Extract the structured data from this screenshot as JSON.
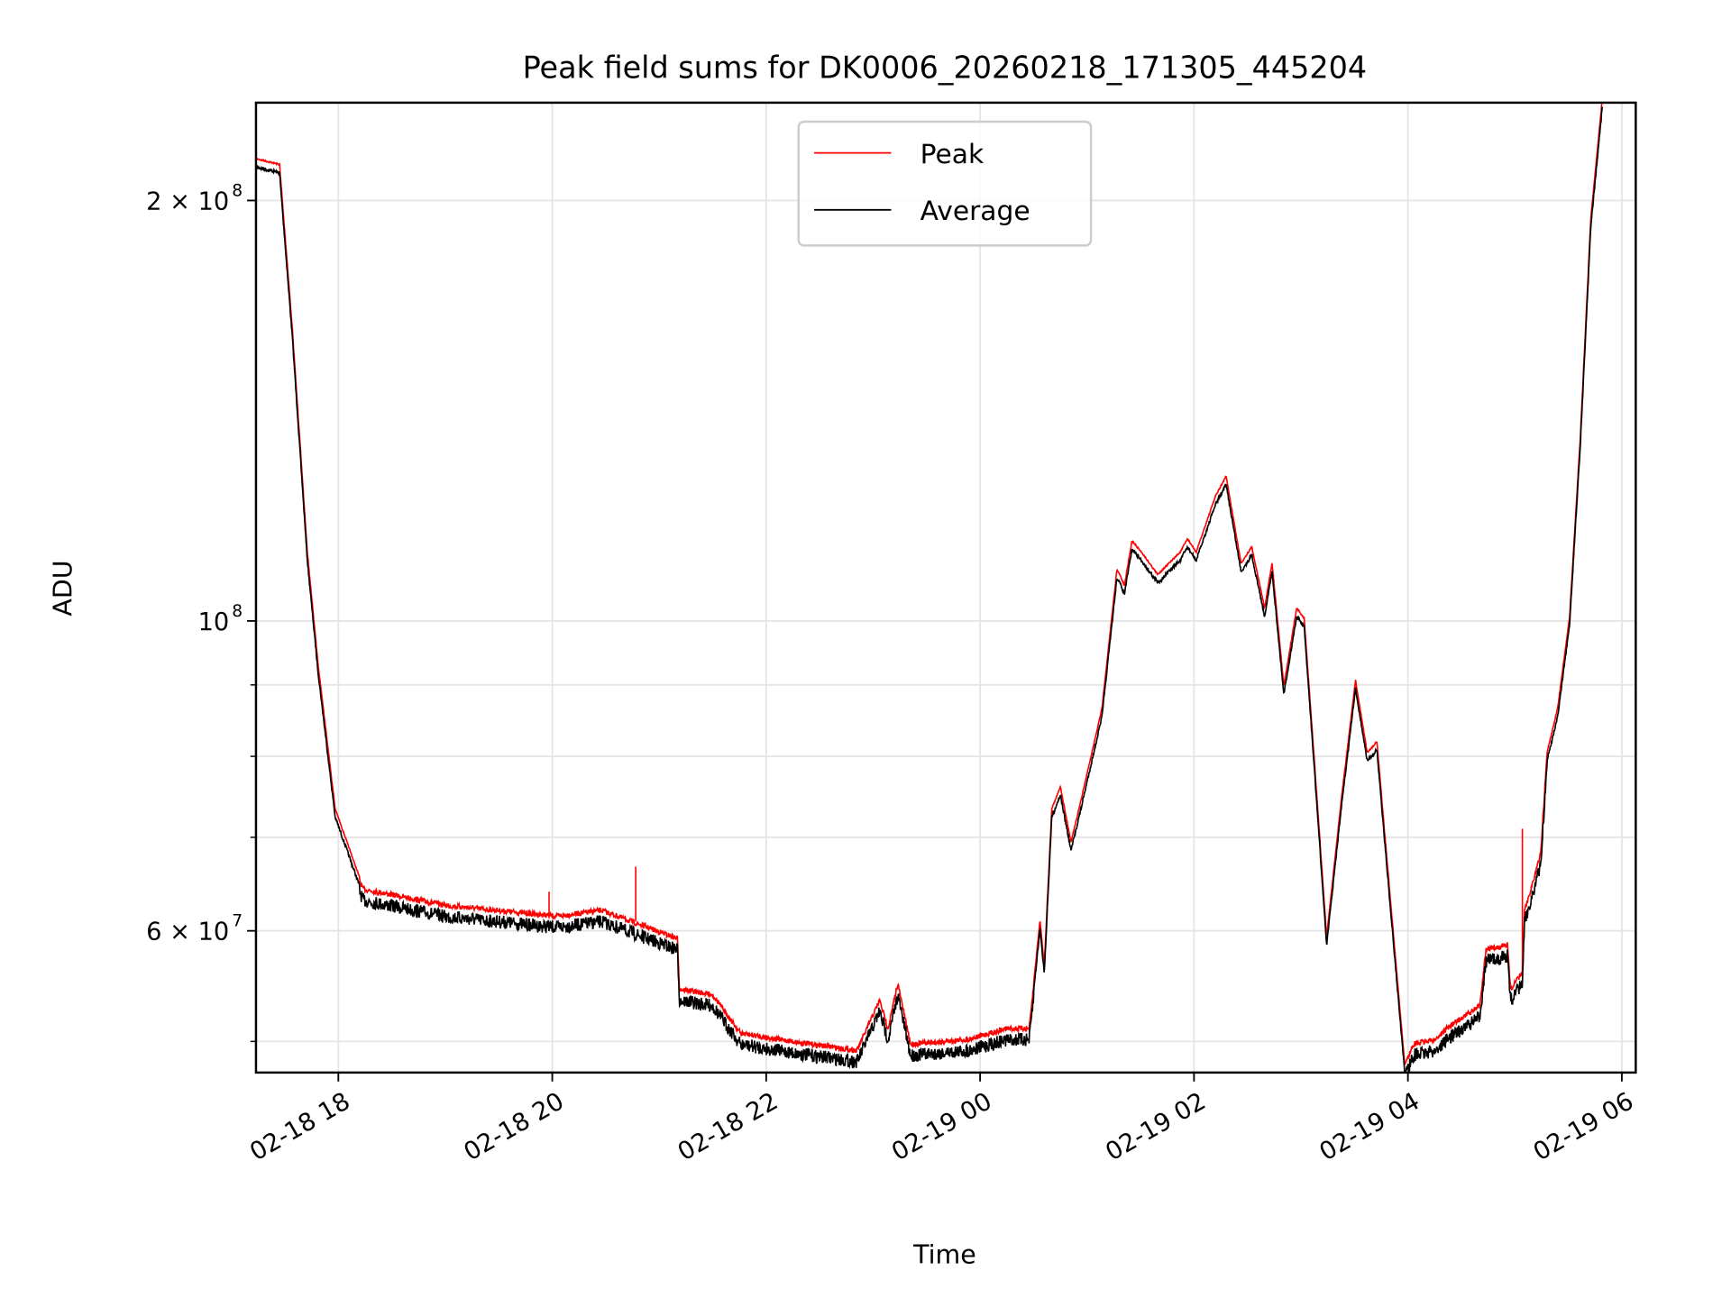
{
  "chart_data": {
    "type": "line",
    "title": "Peak field sums for DK0006_20260218_171305_445204",
    "xlabel": "Time",
    "ylabel": "ADU",
    "yscale": "log",
    "ylim": [
      47500000,
      235000000
    ],
    "xlim_hours": [
      17.23,
      30.13
    ],
    "grid": true,
    "legend": {
      "placement": "upper-center",
      "entries": [
        {
          "label": "Peak",
          "color": "#ff0000"
        },
        {
          "label": "Average",
          "color": "#000000"
        }
      ]
    },
    "x_ticks": [
      {
        "label": "02-18 18",
        "hours": 18
      },
      {
        "label": "02-18 20",
        "hours": 20
      },
      {
        "label": "02-18 22",
        "hours": 22
      },
      {
        "label": "02-19 00",
        "hours": 24
      },
      {
        "label": "02-19 02",
        "hours": 26
      },
      {
        "label": "02-19 04",
        "hours": 28
      },
      {
        "label": "02-19 06",
        "hours": 30
      }
    ],
    "y_major_ticks": [
      {
        "base": "2 × 10",
        "exp": "8",
        "value": 200000000
      },
      {
        "base": "10",
        "exp": "8",
        "value": 100000000
      },
      {
        "base": "6 × 10",
        "exp": "7",
        "value": 60000000
      }
    ],
    "y_minor_ticks": [
      50000000,
      70000000,
      80000000,
      90000000
    ],
    "series": [
      {
        "name": "Average",
        "color": "#000000",
        "x_hours": [
          17.23,
          17.45,
          17.57,
          17.71,
          17.81,
          17.97,
          18.23,
          19.01,
          20.05,
          20.46,
          21.17,
          21.19,
          21.5,
          21.76,
          22.33,
          22.85,
          23.06,
          23.14,
          23.23,
          23.35,
          23.89,
          24.25,
          24.46,
          24.56,
          24.6,
          24.67,
          24.75,
          24.85,
          24.95,
          25.14,
          25.28,
          25.35,
          25.42,
          25.51,
          25.66,
          25.87,
          25.94,
          26.02,
          26.2,
          26.3,
          26.44,
          26.54,
          26.66,
          26.73,
          26.84,
          26.96,
          27.03,
          27.12,
          27.24,
          27.38,
          27.51,
          27.62,
          27.71,
          27.79,
          27.97,
          28.05,
          28.26,
          28.36,
          28.67,
          28.73,
          28.93,
          28.96,
          29.07,
          29.09,
          29.24,
          29.3,
          29.4,
          29.51,
          29.61,
          29.71,
          29.82
        ],
        "values": [
          212000000.0,
          210000000.0,
          160000000.0,
          110800000.0,
          92200000.0,
          72600000.0,
          63800000.0,
          62100000.0,
          61000000.0,
          61600000.0,
          58800000.0,
          54100000.0,
          53600000.0,
          50300000.0,
          49500000.0,
          48900000.0,
          53100000.0,
          50700000.0,
          54600000.0,
          49400000.0,
          49800000.0,
          50700000.0,
          50700000.0,
          60400000.0,
          56100000.0,
          72600000.0,
          75300000.0,
          68700000.0,
          74000000.0,
          85700000.0,
          107800000.0,
          104900000.0,
          112900000.0,
          110800000.0,
          106800000.0,
          110800000.0,
          113300000.0,
          110800000.0,
          121500000.0,
          125600000.0,
          108800000.0,
          111800000.0,
          101100000.0,
          108800000.0,
          88900000.0,
          101100000.0,
          99300000.0,
          79600000.0,
          58800000.0,
          74000000.0,
          89700000.0,
          79600000.0,
          81100000.0,
          68700000.0,
          47600000.0,
          49400000.0,
          49800000.0,
          50700000.0,
          52600000.0,
          57700000.0,
          58200000.0,
          54100000.0,
          55600000.0,
          61500000.0,
          67500000.0,
          79600000.0,
          85700000.0,
          99300000.0,
          133200000.0,
          192300000.0,
          235000000.0
        ]
      },
      {
        "name": "Peak",
        "color": "#ff0000",
        "relative_to_average": 1.012,
        "spikes": [
          {
            "x_hours": 19.97,
            "value": 64000000.0
          },
          {
            "x_hours": 20.78,
            "value": 66700000.0
          },
          {
            "x_hours": 29.07,
            "value": 71000000.0
          }
        ]
      }
    ]
  }
}
